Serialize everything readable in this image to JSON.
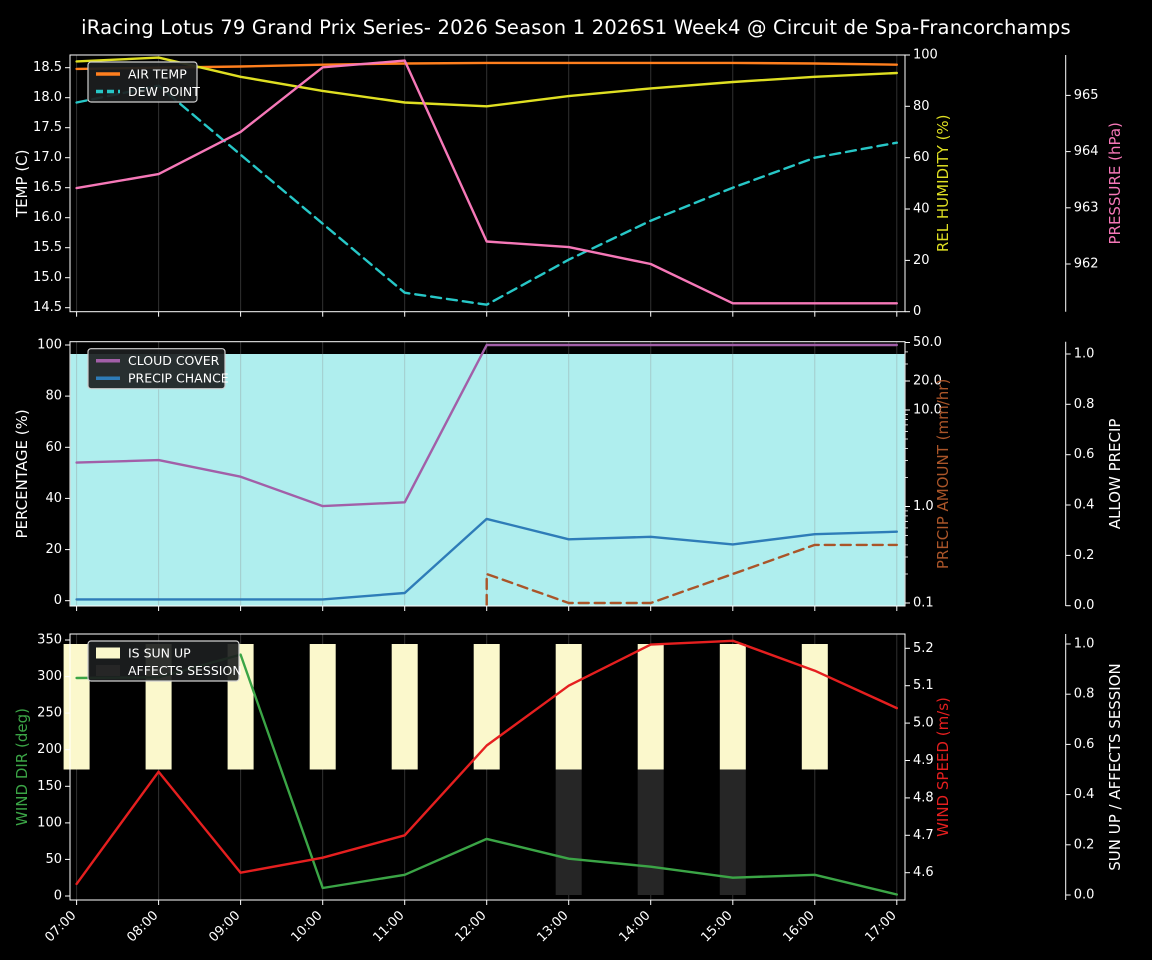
{
  "title": "iRacing Lotus 79 Grand Prix Series- 2026 Season 1 2026S1 Week4 @ Circuit de Spa-Francorchamps",
  "times": [
    "07:00",
    "08:00",
    "09:00",
    "10:00",
    "11:00",
    "12:00",
    "13:00",
    "14:00",
    "15:00",
    "16:00",
    "17:00"
  ],
  "colors": {
    "background": "#000000",
    "text": "#ffffff",
    "air_temp": "#ff7f1e",
    "dew_point": "#27c7c7",
    "rel_humidity": "#dfdf22",
    "pressure": "#f678b8",
    "cloud_cover": "#a25fa8",
    "precip_chance": "#2e7cb8",
    "precip_amount": "#aa5529",
    "allow_precip_fill": "#afeeee",
    "wind_dir": "#3ba546",
    "wind_speed": "#e51f1f",
    "sun_up_bar": "#fbf8cc",
    "affects_session_bar": "#262626",
    "grid": "#8c8c8c",
    "legend_bg": "rgba(28,30,32,0.92)",
    "legend_border": "#cfcfcf"
  },
  "chart_data": [
    {
      "type": "line",
      "id": "temperature-humidity-pressure",
      "axes": {
        "left": {
          "label": "TEMP (C)",
          "color": "text",
          "scale": "temp",
          "ticks": [
            {
              "v": 14.5,
              "l": "14.5"
            },
            {
              "v": 15.0,
              "l": "15.0"
            },
            {
              "v": 15.5,
              "l": "15.5"
            },
            {
              "v": 16.0,
              "l": "16.0"
            },
            {
              "v": 16.5,
              "l": "16.5"
            },
            {
              "v": 17.0,
              "l": "17.0"
            },
            {
              "v": 17.5,
              "l": "17.5"
            },
            {
              "v": 18.0,
              "l": "18.0"
            },
            {
              "v": 18.5,
              "l": "18.5"
            }
          ]
        },
        "right1": {
          "label": "REL HUMIDITY (%)",
          "color": "rel_humidity",
          "scale": "humidity",
          "log": false,
          "ticks": [
            {
              "v": 0,
              "l": "0"
            },
            {
              "v": 20,
              "l": "20"
            },
            {
              "v": 40,
              "l": "40"
            },
            {
              "v": 60,
              "l": "60"
            },
            {
              "v": 80,
              "l": "80"
            },
            {
              "v": 100,
              "l": "100"
            }
          ]
        },
        "right2": {
          "label": "PRESSURE (hPa)",
          "color": "pressure",
          "scale": "pressure",
          "ticks": [
            {
              "v": 962,
              "l": "962"
            },
            {
              "v": 963,
              "l": "963"
            },
            {
              "v": 964,
              "l": "964"
            },
            {
              "v": 965,
              "l": "965"
            }
          ]
        }
      },
      "legend": [
        {
          "label": "AIR TEMP",
          "color": "air_temp",
          "type": "line"
        },
        {
          "label": "DEW POINT",
          "color": "dew_point",
          "type": "dashed"
        }
      ],
      "series": [
        {
          "name": "AIR TEMP",
          "color": "air_temp",
          "scale": "temp",
          "dashed": false,
          "values": [
            18.48,
            18.5,
            18.52,
            18.55,
            18.57,
            18.58,
            18.58,
            18.58,
            18.58,
            18.57,
            18.55
          ]
        },
        {
          "name": "DEW POINT",
          "color": "dew_point",
          "scale": "temp",
          "dashed": true,
          "values": [
            17.92,
            18.2,
            17.05,
            15.9,
            14.75,
            14.55,
            15.3,
            15.95,
            16.5,
            17.0,
            17.25
          ]
        },
        {
          "name": "REL HUMIDITY",
          "color": "rel_humidity",
          "scale": "humidity",
          "dashed": false,
          "values": [
            97.5,
            99.0,
            91.5,
            86.0,
            81.5,
            80.0,
            84.0,
            87.0,
            89.5,
            91.5,
            93.0
          ]
        },
        {
          "name": "PRESSURE",
          "color": "pressure",
          "scale": "pressure",
          "dashed": false,
          "values": [
            963.35,
            963.6,
            964.35,
            965.5,
            965.62,
            962.4,
            962.3,
            962.0,
            961.3,
            961.3,
            961.3
          ]
        }
      ]
    },
    {
      "type": "line",
      "id": "precipitation-cloud",
      "fill": {
        "name": "ALLOW PRECIP",
        "color": "allow_precip_fill",
        "scale": "allow",
        "values": [
          1,
          1,
          1,
          1,
          1,
          1,
          1,
          1,
          1,
          1,
          1
        ]
      },
      "axes": {
        "left": {
          "label": "PERCENTAGE (%)",
          "color": "text",
          "scale": "pct",
          "ticks": [
            {
              "v": 0,
              "l": "0"
            },
            {
              "v": 20,
              "l": "20"
            },
            {
              "v": 40,
              "l": "40"
            },
            {
              "v": 60,
              "l": "60"
            },
            {
              "v": 80,
              "l": "80"
            },
            {
              "v": 100,
              "l": "100"
            }
          ]
        },
        "right1": {
          "label": "PRECIP AMOUNT (mm/hr)",
          "color": "precip_amount",
          "scale": "mm",
          "log": true,
          "ticks": [
            {
              "v": 50,
              "l": "50.0"
            },
            {
              "v": 20,
              "l": "20.0"
            },
            {
              "v": 10,
              "l": "10.0"
            },
            {
              "v": 1,
              "l": "1.0"
            },
            {
              "v": 0.1,
              "l": "0.1"
            }
          ]
        },
        "right2": {
          "label": "ALLOW PRECIP",
          "color": "text",
          "scale": "allow",
          "ticks": [
            {
              "v": 0.0,
              "l": "0.0"
            },
            {
              "v": 0.2,
              "l": "0.2"
            },
            {
              "v": 0.4,
              "l": "0.4"
            },
            {
              "v": 0.6,
              "l": "0.6"
            },
            {
              "v": 0.8,
              "l": "0.8"
            },
            {
              "v": 1.0,
              "l": "1.0"
            }
          ]
        }
      },
      "legend": [
        {
          "label": "CLOUD COVER",
          "color": "cloud_cover",
          "type": "line"
        },
        {
          "label": "PRECIP CHANCE",
          "color": "precip_chance",
          "type": "line"
        }
      ],
      "series": [
        {
          "name": "CLOUD COVER",
          "color": "cloud_cover",
          "scale": "pct",
          "dashed": false,
          "values": [
            54,
            55,
            48.5,
            37,
            38.5,
            100,
            100,
            100,
            100,
            100,
            100
          ]
        },
        {
          "name": "PRECIP CHANCE",
          "color": "precip_chance",
          "scale": "pct",
          "dashed": false,
          "values": [
            0.5,
            0.5,
            0.5,
            0.5,
            3,
            32,
            24,
            25,
            22,
            26,
            27
          ]
        },
        {
          "name": "PRECIP AMOUNT",
          "color": "precip_amount",
          "scale": "mm",
          "dashed": true,
          "riser": true,
          "values": [
            null,
            null,
            null,
            null,
            null,
            0.2,
            0.1,
            0.1,
            0.2,
            0.4,
            0.4
          ]
        }
      ]
    },
    {
      "type": "line-bar",
      "id": "wind-sun",
      "bars": [
        {
          "name": "IS SUN UP",
          "color": "sun_up_bar",
          "scale": "sun",
          "from": 0.5,
          "to": 1.0,
          "flags": [
            1,
            1,
            1,
            1,
            1,
            1,
            1,
            1,
            1,
            1,
            0
          ]
        },
        {
          "name": "AFFECTS SESSION",
          "color": "affects_session_bar",
          "scale": "sun",
          "from": 0.0,
          "to": 0.5,
          "flags": [
            0,
            0,
            0,
            0,
            0,
            0,
            1,
            1,
            1,
            0,
            0
          ]
        }
      ],
      "axes": {
        "left": {
          "label": "WIND DIR (deg)",
          "color": "wind_dir",
          "scale": "deg",
          "ticks": [
            {
              "v": 0,
              "l": "0"
            },
            {
              "v": 50,
              "l": "50"
            },
            {
              "v": 100,
              "l": "100"
            },
            {
              "v": 150,
              "l": "150"
            },
            {
              "v": 200,
              "l": "200"
            },
            {
              "v": 250,
              "l": "250"
            },
            {
              "v": 300,
              "l": "300"
            },
            {
              "v": 350,
              "l": "350"
            }
          ]
        },
        "right1": {
          "label": "WIND SPEED (m/s)",
          "color": "wind_speed",
          "scale": "spd",
          "log": false,
          "ticks": [
            {
              "v": 4.6,
              "l": "4.6"
            },
            {
              "v": 4.7,
              "l": "4.7"
            },
            {
              "v": 4.8,
              "l": "4.8"
            },
            {
              "v": 4.9,
              "l": "4.9"
            },
            {
              "v": 5.0,
              "l": "5.0"
            },
            {
              "v": 5.1,
              "l": "5.1"
            },
            {
              "v": 5.2,
              "l": "5.2"
            }
          ]
        },
        "right2": {
          "label": "SUN UP / AFFECTS SESSION",
          "color": "text",
          "scale": "sun",
          "ticks": [
            {
              "v": 0.0,
              "l": "0.0"
            },
            {
              "v": 0.2,
              "l": "0.2"
            },
            {
              "v": 0.4,
              "l": "0.4"
            },
            {
              "v": 0.6,
              "l": "0.6"
            },
            {
              "v": 0.8,
              "l": "0.8"
            },
            {
              "v": 1.0,
              "l": "1.0"
            }
          ]
        }
      },
      "legend": [
        {
          "label": "IS SUN UP",
          "color": "sun_up_bar",
          "type": "patch"
        },
        {
          "label": "AFFECTS SESSION",
          "color": "affects_session_bar",
          "type": "patch"
        }
      ],
      "series": [
        {
          "name": "WIND DIR",
          "color": "wind_dir",
          "scale": "deg",
          "dashed": false,
          "values": [
            298,
            299,
            330,
            11,
            29,
            78,
            51,
            40,
            25,
            29,
            2
          ]
        },
        {
          "name": "WIND SPEED",
          "color": "wind_speed",
          "scale": "spd",
          "dashed": false,
          "values": [
            4.57,
            4.87,
            4.6,
            4.64,
            4.7,
            4.94,
            5.1,
            5.21,
            5.22,
            5.14,
            5.04
          ]
        }
      ]
    }
  ]
}
